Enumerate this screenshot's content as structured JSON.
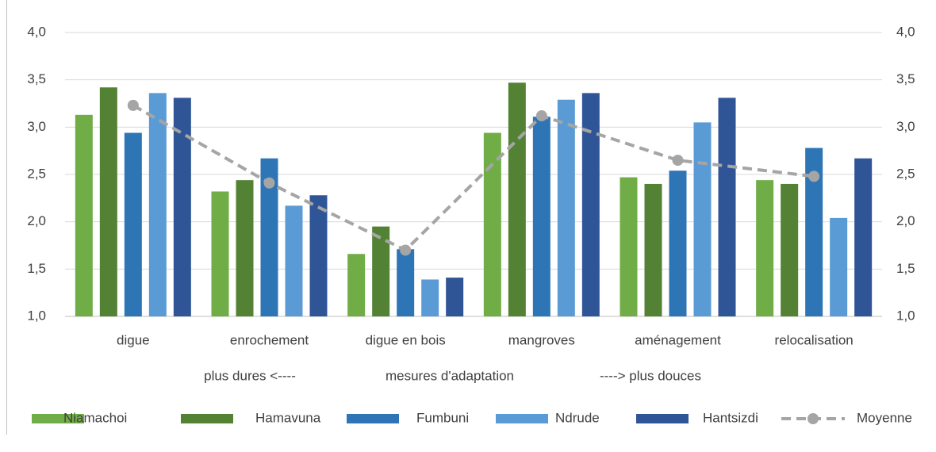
{
  "chart_data": {
    "type": "bar",
    "categories": [
      "digue",
      "enrochement",
      "digue en bois",
      "mangroves",
      "aménagement",
      "relocalisation"
    ],
    "x_label": "mesures d'adaptation",
    "annotations": [
      "plus dures <----",
      "----> plus douces"
    ],
    "series": [
      {
        "name": "Niamachoi",
        "color": "#70ad47",
        "type": "bar",
        "values": [
          3.13,
          2.32,
          1.66,
          2.94,
          2.47,
          2.44
        ]
      },
      {
        "name": "Hamavuna",
        "color": "#548235",
        "type": "bar",
        "values": [
          3.42,
          2.44,
          1.95,
          3.47,
          2.4,
          2.4
        ]
      },
      {
        "name": "Fumbuni",
        "color": "#2e75b6",
        "type": "bar",
        "values": [
          2.94,
          2.67,
          1.71,
          3.11,
          2.54,
          2.78
        ]
      },
      {
        "name": "Ndrude",
        "color": "#5b9bd5",
        "type": "bar",
        "values": [
          3.36,
          2.17,
          1.39,
          3.29,
          3.05,
          2.04
        ]
      },
      {
        "name": "Hantsizdi",
        "color": "#2f5597",
        "type": "bar",
        "values": [
          3.31,
          2.28,
          1.41,
          3.36,
          3.31,
          2.67
        ]
      },
      {
        "name": "Moyenne",
        "color": "#a5a5a5",
        "type": "line",
        "dashed": true,
        "values": [
          3.23,
          2.41,
          1.7,
          3.12,
          2.65,
          2.48
        ]
      }
    ],
    "ylim": [
      1.0,
      4.0
    ],
    "yticks": [
      {
        "value": 1.0,
        "label": "1,0"
      },
      {
        "value": 1.5,
        "label": "1,5"
      },
      {
        "value": 2.0,
        "label": "2,0"
      },
      {
        "value": 2.5,
        "label": "2,5"
      },
      {
        "value": 3.0,
        "label": "3,0"
      },
      {
        "value": 3.5,
        "label": "3,5"
      },
      {
        "value": 4.0,
        "label": "4,0"
      }
    ],
    "y2lim": [
      1.0,
      4.0
    ],
    "y2ticks": [
      {
        "value": 1.0,
        "label": "1,0"
      },
      {
        "value": 1.5,
        "label": "1,5"
      },
      {
        "value": 2.0,
        "label": "2,0"
      },
      {
        "value": 2.5,
        "label": "2,5"
      },
      {
        "value": 3.0,
        "label": "3,0"
      },
      {
        "value": 3.5,
        "label": "3,5"
      },
      {
        "value": 4.0,
        "label": "4,0"
      }
    ],
    "grid": true,
    "legend": "bottom"
  }
}
